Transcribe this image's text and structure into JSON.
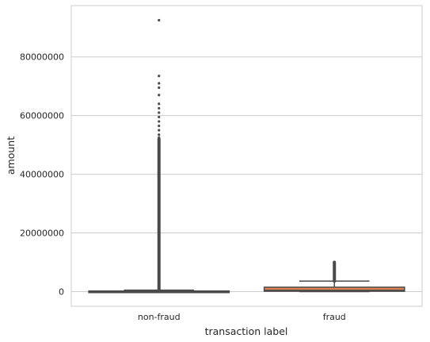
{
  "chart_data": {
    "type": "box",
    "title": "",
    "xlabel": "transaction label",
    "ylabel": "amount",
    "ylim": [
      -5000000,
      97500000
    ],
    "yticks": [
      0,
      20000000,
      40000000,
      60000000,
      80000000
    ],
    "ytick_labels": [
      "0",
      "20000000",
      "40000000",
      "60000000",
      "80000000"
    ],
    "grid": "y-axis horizontal lines",
    "categories": [
      "non-fraud",
      "fraud"
    ],
    "boxes": [
      {
        "category": "non-fraud",
        "color": "#4c72b0",
        "q1": 13000,
        "median": 75000,
        "q3": 210000,
        "whisker_low": 0,
        "whisker_high": 500000,
        "outlier_range": [
          500000,
          52000000
        ],
        "sparse_outliers": [
          52500000,
          53500000,
          55000000,
          56500000,
          58000000,
          59500000,
          61000000,
          62500000,
          64000000,
          67000000,
          69500000,
          71000000,
          73500000,
          92500000
        ]
      },
      {
        "category": "fraud",
        "color": "#dd8452",
        "q1": 130000,
        "median": 440000,
        "q3": 1500000,
        "whisker_low": 0,
        "whisker_high": 3600000,
        "outlier_range": [
          3600000,
          10000000
        ],
        "sparse_outliers": []
      }
    ],
    "colors": {
      "line": "#4a4a4a",
      "grid": "#cccccc",
      "spine": "#cccccc"
    }
  }
}
